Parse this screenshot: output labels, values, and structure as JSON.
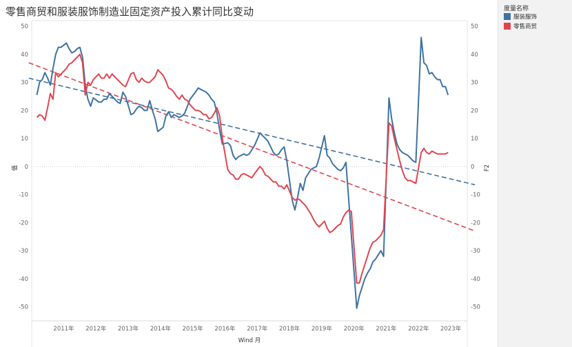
{
  "title": "零售商贸和服装服饰制造业固定资产投入累计同比变动",
  "legend": {
    "title": "度量名称",
    "items": [
      {
        "label": "服装服饰",
        "color": "#3d72a3"
      },
      {
        "label": "零售商贸",
        "color": "#e0454f"
      }
    ]
  },
  "chart_data": {
    "type": "line",
    "title": "零售商贸和服装服饰制造业固定资产投入累计同比变动",
    "xlabel": "Wind 月",
    "ylabel_left": "值",
    "ylabel_right": "F2",
    "ylim": [
      -55,
      52
    ],
    "y_ticks": [
      50,
      40,
      30,
      20,
      10,
      0,
      -10,
      -20,
      -30,
      -40,
      -50
    ],
    "x_ticks": [
      "2011年",
      "2012年",
      "2013年",
      "2014年",
      "2015年",
      "2016年",
      "2017年",
      "2018年",
      "2019年",
      "2020年",
      "2021年",
      "2022年",
      "2023年"
    ],
    "x_tick_dates": [
      "2011-01",
      "2012-01",
      "2013-01",
      "2014-01",
      "2015-01",
      "2016-01",
      "2017-01",
      "2018-01",
      "2019-01",
      "2020-01",
      "2021-01",
      "2022-01",
      "2023-01"
    ],
    "zero_line": true,
    "series": [
      {
        "name": "服装服饰",
        "color": "#3d72a3",
        "points": [
          [
            "2010-03",
            25.5
          ],
          [
            "2010-04",
            30
          ],
          [
            "2010-05",
            31
          ],
          [
            "2010-06",
            33.5
          ],
          [
            "2010-07",
            31.5
          ],
          [
            "2010-08",
            29
          ],
          [
            "2010-09",
            35
          ],
          [
            "2010-10",
            40
          ],
          [
            "2010-11",
            42.5
          ],
          [
            "2010-12",
            42.5
          ],
          [
            "2011-02",
            44
          ],
          [
            "2011-03",
            42
          ],
          [
            "2011-04",
            40.5
          ],
          [
            "2011-05",
            41
          ],
          [
            "2011-06",
            42
          ],
          [
            "2011-07",
            42.5
          ],
          [
            "2011-08",
            39
          ],
          [
            "2011-09",
            29
          ],
          [
            "2011-10",
            24
          ],
          [
            "2011-11",
            21.5
          ],
          [
            "2011-12",
            24.5
          ],
          [
            "2012-02",
            23
          ],
          [
            "2012-03",
            23
          ],
          [
            "2012-04",
            24
          ],
          [
            "2012-05",
            24
          ],
          [
            "2012-06",
            26
          ],
          [
            "2012-07",
            25
          ],
          [
            "2012-08",
            24
          ],
          [
            "2012-09",
            23
          ],
          [
            "2012-10",
            22.5
          ],
          [
            "2012-11",
            26.5
          ],
          [
            "2012-12",
            25
          ],
          [
            "2013-02",
            18.5
          ],
          [
            "2013-03",
            19
          ],
          [
            "2013-04",
            20.5
          ],
          [
            "2013-05",
            21.5
          ],
          [
            "2013-06",
            21
          ],
          [
            "2013-07",
            20
          ],
          [
            "2013-08",
            20
          ],
          [
            "2013-09",
            23.5
          ],
          [
            "2013-10",
            20
          ],
          [
            "2013-11",
            17
          ],
          [
            "2013-12",
            12.5
          ],
          [
            "2014-02",
            14
          ],
          [
            "2014-03",
            18
          ],
          [
            "2014-04",
            19.5
          ],
          [
            "2014-05",
            17.5
          ],
          [
            "2014-06",
            18.5
          ],
          [
            "2014-07",
            18
          ],
          [
            "2014-08",
            17.5
          ],
          [
            "2014-09",
            18
          ],
          [
            "2014-10",
            19
          ],
          [
            "2014-11",
            21.5
          ],
          [
            "2014-12",
            24
          ],
          [
            "2015-02",
            26.5
          ],
          [
            "2015-03",
            28
          ],
          [
            "2015-04",
            27.5
          ],
          [
            "2015-05",
            27
          ],
          [
            "2015-06",
            26.5
          ],
          [
            "2015-07",
            25.5
          ],
          [
            "2015-08",
            24
          ],
          [
            "2015-09",
            23
          ],
          [
            "2015-10",
            19
          ],
          [
            "2015-11",
            13
          ],
          [
            "2015-12",
            8
          ],
          [
            "2016-02",
            8.5
          ],
          [
            "2016-03",
            7.5
          ],
          [
            "2016-04",
            4
          ],
          [
            "2016-05",
            2.5
          ],
          [
            "2016-06",
            3.5
          ],
          [
            "2016-07",
            4
          ],
          [
            "2016-08",
            4.5
          ],
          [
            "2016-09",
            4
          ],
          [
            "2016-10",
            4.5
          ],
          [
            "2016-11",
            6
          ],
          [
            "2016-12",
            7.5
          ],
          [
            "2017-02",
            12
          ],
          [
            "2017-03",
            11
          ],
          [
            "2017-04",
            10
          ],
          [
            "2017-05",
            9
          ],
          [
            "2017-06",
            7
          ],
          [
            "2017-07",
            5
          ],
          [
            "2017-08",
            4
          ],
          [
            "2017-09",
            4.5
          ],
          [
            "2017-10",
            6
          ],
          [
            "2017-11",
            7
          ],
          [
            "2017-12",
            2
          ],
          [
            "2018-02",
            -12
          ],
          [
            "2018-03",
            -15.5
          ],
          [
            "2018-04",
            -11
          ],
          [
            "2018-05",
            -6
          ],
          [
            "2018-06",
            -8.5
          ],
          [
            "2018-07",
            -4
          ],
          [
            "2018-08",
            -2.5
          ],
          [
            "2018-09",
            -1
          ],
          [
            "2018-10",
            -0.5
          ],
          [
            "2018-11",
            0
          ],
          [
            "2018-12",
            3
          ],
          [
            "2019-02",
            11
          ],
          [
            "2019-03",
            4
          ],
          [
            "2019-04",
            3
          ],
          [
            "2019-05",
            1
          ],
          [
            "2019-06",
            0
          ],
          [
            "2019-07",
            -1
          ],
          [
            "2019-08",
            -1.5
          ],
          [
            "2019-09",
            -0.5
          ],
          [
            "2019-10",
            1.5
          ],
          [
            "2020-02",
            -50.5
          ],
          [
            "2020-03",
            -46
          ],
          [
            "2020-04",
            -43
          ],
          [
            "2020-05",
            -40
          ],
          [
            "2020-06",
            -38
          ],
          [
            "2020-07",
            -36.5
          ],
          [
            "2020-08",
            -34
          ],
          [
            "2020-09",
            -33
          ],
          [
            "2020-10",
            -31.5
          ],
          [
            "2020-11",
            -30
          ],
          [
            "2020-12",
            -32
          ],
          [
            "2021-02",
            24.5
          ],
          [
            "2021-03",
            17
          ],
          [
            "2021-04",
            12
          ],
          [
            "2021-05",
            8
          ],
          [
            "2021-06",
            6
          ],
          [
            "2021-07",
            5
          ],
          [
            "2021-08",
            4.5
          ],
          [
            "2021-09",
            4
          ],
          [
            "2021-10",
            3
          ],
          [
            "2021-11",
            2
          ],
          [
            "2021-12",
            1.5
          ],
          [
            "2022-02",
            46
          ],
          [
            "2022-03",
            37
          ],
          [
            "2022-04",
            36
          ],
          [
            "2022-05",
            33
          ],
          [
            "2022-06",
            33.5
          ],
          [
            "2022-07",
            32
          ],
          [
            "2022-08",
            31
          ],
          [
            "2022-09",
            31
          ],
          [
            "2022-10",
            28.5
          ],
          [
            "2022-11",
            28.5
          ],
          [
            "2022-12",
            25.5
          ]
        ]
      },
      {
        "name": "零售商贸",
        "color": "#e0454f",
        "points": [
          [
            "2010-03",
            17.5
          ],
          [
            "2010-04",
            18.5
          ],
          [
            "2010-05",
            18
          ],
          [
            "2010-06",
            16.5
          ],
          [
            "2010-07",
            21
          ],
          [
            "2010-08",
            26
          ],
          [
            "2010-09",
            24
          ],
          [
            "2010-10",
            33.5
          ],
          [
            "2010-11",
            32
          ],
          [
            "2010-12",
            33
          ],
          [
            "2011-02",
            35
          ],
          [
            "2011-03",
            36.5
          ],
          [
            "2011-04",
            37
          ],
          [
            "2011-05",
            38
          ],
          [
            "2011-06",
            39
          ],
          [
            "2011-07",
            40
          ],
          [
            "2011-08",
            37
          ],
          [
            "2011-09",
            25.5
          ],
          [
            "2011-10",
            30
          ],
          [
            "2011-11",
            29
          ],
          [
            "2011-12",
            31
          ],
          [
            "2012-02",
            33
          ],
          [
            "2012-03",
            31.5
          ],
          [
            "2012-04",
            31.5
          ],
          [
            "2012-05",
            33
          ],
          [
            "2012-06",
            31.5
          ],
          [
            "2012-07",
            33
          ],
          [
            "2012-08",
            32
          ],
          [
            "2012-09",
            31
          ],
          [
            "2012-10",
            30
          ],
          [
            "2012-11",
            29
          ],
          [
            "2012-12",
            28.5
          ],
          [
            "2013-02",
            33
          ],
          [
            "2013-03",
            33.5
          ],
          [
            "2013-04",
            31
          ],
          [
            "2013-05",
            30
          ],
          [
            "2013-06",
            31.5
          ],
          [
            "2013-07",
            30.5
          ],
          [
            "2013-08",
            30
          ],
          [
            "2013-09",
            30
          ],
          [
            "2013-10",
            31
          ],
          [
            "2013-11",
            32
          ],
          [
            "2013-12",
            34.5
          ],
          [
            "2014-02",
            32.5
          ],
          [
            "2014-03",
            30.5
          ],
          [
            "2014-04",
            28
          ],
          [
            "2014-05",
            27.5
          ],
          [
            "2014-06",
            26.5
          ],
          [
            "2014-07",
            25
          ],
          [
            "2014-08",
            24
          ],
          [
            "2014-09",
            25.5
          ],
          [
            "2014-10",
            24
          ],
          [
            "2014-11",
            23.5
          ],
          [
            "2014-12",
            22
          ],
          [
            "2015-02",
            20
          ],
          [
            "2015-03",
            20
          ],
          [
            "2015-04",
            19.5
          ],
          [
            "2015-05",
            18.5
          ],
          [
            "2015-06",
            18.5
          ],
          [
            "2015-07",
            17
          ],
          [
            "2015-08",
            17.5
          ],
          [
            "2015-09",
            19
          ],
          [
            "2015-10",
            21
          ],
          [
            "2015-11",
            18
          ],
          [
            "2015-12",
            10
          ],
          [
            "2016-02",
            -1
          ],
          [
            "2016-03",
            -2.5
          ],
          [
            "2016-04",
            -3
          ],
          [
            "2016-05",
            -4.5
          ],
          [
            "2016-06",
            -4.5
          ],
          [
            "2016-07",
            -3
          ],
          [
            "2016-08",
            -2.5
          ],
          [
            "2016-09",
            -3
          ],
          [
            "2016-10",
            -3.5
          ],
          [
            "2016-11",
            -4
          ],
          [
            "2016-12",
            -2.5
          ],
          [
            "2017-02",
            0
          ],
          [
            "2017-03",
            -1
          ],
          [
            "2017-04",
            -3
          ],
          [
            "2017-05",
            -3.5
          ],
          [
            "2017-06",
            -4.5
          ],
          [
            "2017-07",
            -5.5
          ],
          [
            "2017-08",
            -5.5
          ],
          [
            "2017-09",
            -7
          ],
          [
            "2017-10",
            -7
          ],
          [
            "2017-11",
            -8
          ],
          [
            "2017-12",
            -6.5
          ],
          [
            "2018-02",
            -11
          ],
          [
            "2018-03",
            -12
          ],
          [
            "2018-04",
            -11.5
          ],
          [
            "2018-05",
            -12
          ],
          [
            "2018-06",
            -13
          ],
          [
            "2018-07",
            -14
          ],
          [
            "2018-08",
            -15.5
          ],
          [
            "2018-09",
            -17
          ],
          [
            "2018-10",
            -19
          ],
          [
            "2018-11",
            -20.5
          ],
          [
            "2018-12",
            -21.5
          ],
          [
            "2019-02",
            -19.5
          ],
          [
            "2019-03",
            -22
          ],
          [
            "2019-04",
            -23.5
          ],
          [
            "2019-05",
            -23
          ],
          [
            "2019-06",
            -22
          ],
          [
            "2019-07",
            -21
          ],
          [
            "2019-08",
            -20.5
          ],
          [
            "2019-09",
            -18
          ],
          [
            "2019-10",
            -16.5
          ],
          [
            "2019-11",
            -15.5
          ],
          [
            "2019-12",
            -16
          ],
          [
            "2020-02",
            -41.5
          ],
          [
            "2020-03",
            -41.5
          ],
          [
            "2020-04",
            -38
          ],
          [
            "2020-05",
            -35
          ],
          [
            "2020-06",
            -32
          ],
          [
            "2020-07",
            -29
          ],
          [
            "2020-08",
            -27
          ],
          [
            "2020-09",
            -26.5
          ],
          [
            "2020-10",
            -25.5
          ],
          [
            "2020-11",
            -24.5
          ],
          [
            "2020-12",
            -22.5
          ],
          [
            "2021-02",
            15.5
          ],
          [
            "2021-03",
            14.5
          ],
          [
            "2021-04",
            10
          ],
          [
            "2021-05",
            6
          ],
          [
            "2021-06",
            2
          ],
          [
            "2021-07",
            -1.5
          ],
          [
            "2021-08",
            -4
          ],
          [
            "2021-09",
            -5
          ],
          [
            "2021-10",
            -5
          ],
          [
            "2021-11",
            -5.5
          ],
          [
            "2021-12",
            -6
          ],
          [
            "2022-02",
            5
          ],
          [
            "2022-03",
            6.5
          ],
          [
            "2022-04",
            5
          ],
          [
            "2022-05",
            4.5
          ],
          [
            "2022-06",
            5.5
          ],
          [
            "2022-07",
            5
          ],
          [
            "2022-08",
            4.5
          ],
          [
            "2022-09",
            4.5
          ],
          [
            "2022-10",
            4.5
          ],
          [
            "2022-11",
            4.5
          ],
          [
            "2022-12",
            5
          ]
        ]
      }
    ],
    "trend_lines": [
      {
        "series": "服装服饰",
        "color": "#3d72a3",
        "style": "dashed",
        "start": [
          "2009-12",
          31.5
        ],
        "end": [
          "2023-10",
          -6.5
        ]
      },
      {
        "series": "零售商贸",
        "color": "#e0454f",
        "style": "dashed",
        "start": [
          "2009-12",
          37
        ],
        "end": [
          "2023-10",
          -23
        ]
      }
    ]
  }
}
